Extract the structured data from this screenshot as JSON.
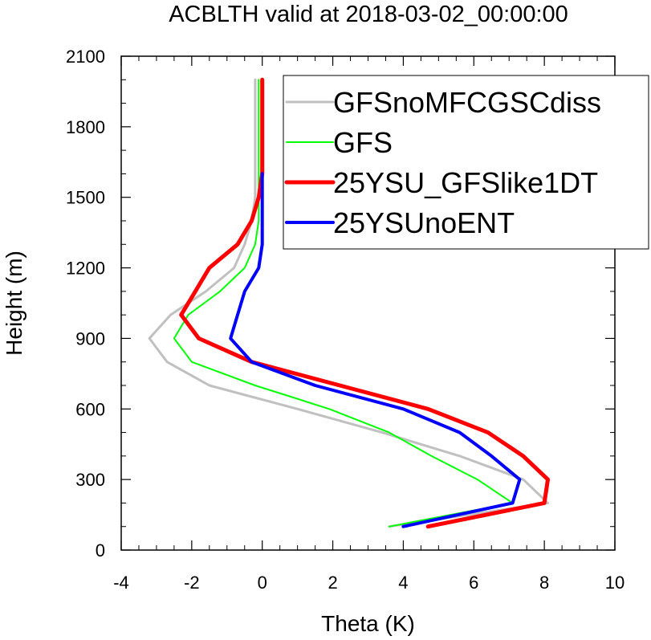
{
  "chart_data": {
    "type": "line",
    "title": "ACBLTH valid at 2018-03-02_00:00:00",
    "xlabel": "Theta (K)",
    "ylabel": "Height (m)",
    "xlim": [
      -4,
      10
    ],
    "ylim": [
      0,
      2100
    ],
    "xticks": [
      -4,
      -2,
      0,
      2,
      4,
      6,
      8,
      10
    ],
    "yticks": [
      0,
      300,
      600,
      900,
      1200,
      1500,
      1800,
      2100
    ],
    "grid": false,
    "legend_position": "top-right",
    "series": [
      {
        "name": "GFSnoMFCGSCdiss",
        "color": "#c0c0c0",
        "width": 3,
        "points": [
          [
            3.6,
            100
          ],
          [
            8.1,
            200
          ],
          [
            7.4,
            300
          ],
          [
            5.6,
            400
          ],
          [
            3.4,
            500
          ],
          [
            1.0,
            600
          ],
          [
            -1.5,
            700
          ],
          [
            -2.7,
            800
          ],
          [
            -3.2,
            900
          ],
          [
            -2.6,
            1000
          ],
          [
            -1.6,
            1100
          ],
          [
            -0.8,
            1200
          ],
          [
            -0.5,
            1300
          ],
          [
            -0.3,
            1400
          ],
          [
            -0.2,
            1500
          ],
          [
            -0.2,
            1600
          ],
          [
            -0.2,
            1700
          ],
          [
            -0.2,
            1800
          ],
          [
            -0.2,
            1900
          ],
          [
            -0.2,
            2000
          ]
        ]
      },
      {
        "name": "GFS",
        "color": "#00ff00",
        "width": 2,
        "points": [
          [
            3.6,
            100
          ],
          [
            7.1,
            200
          ],
          [
            6.1,
            300
          ],
          [
            4.8,
            400
          ],
          [
            3.6,
            500
          ],
          [
            1.9,
            600
          ],
          [
            -0.2,
            700
          ],
          [
            -2.0,
            800
          ],
          [
            -2.5,
            900
          ],
          [
            -2.1,
            1000
          ],
          [
            -1.2,
            1100
          ],
          [
            -0.5,
            1200
          ],
          [
            -0.2,
            1300
          ],
          [
            -0.1,
            1400
          ],
          [
            -0.1,
            1500
          ],
          [
            -0.1,
            1600
          ],
          [
            -0.1,
            1700
          ],
          [
            -0.1,
            1800
          ],
          [
            -0.1,
            1900
          ],
          [
            -0.1,
            2000
          ]
        ]
      },
      {
        "name": "25YSU_GFSlike1DT",
        "color": "#ff0000",
        "width": 5,
        "points": [
          [
            4.7,
            100
          ],
          [
            8.0,
            200
          ],
          [
            8.1,
            300
          ],
          [
            7.4,
            400
          ],
          [
            6.4,
            500
          ],
          [
            4.7,
            600
          ],
          [
            2.2,
            700
          ],
          [
            -0.3,
            800
          ],
          [
            -1.8,
            900
          ],
          [
            -2.3,
            1000
          ],
          [
            -1.9,
            1100
          ],
          [
            -1.5,
            1200
          ],
          [
            -0.7,
            1300
          ],
          [
            -0.3,
            1400
          ],
          [
            -0.1,
            1500
          ],
          [
            0.0,
            1600
          ],
          [
            0.0,
            1700
          ],
          [
            0.0,
            1800
          ],
          [
            0.0,
            1900
          ],
          [
            0.0,
            2000
          ]
        ]
      },
      {
        "name": "25YSUnoENT",
        "color": "#0000ff",
        "width": 4,
        "points": [
          [
            4.0,
            100
          ],
          [
            7.1,
            200
          ],
          [
            7.3,
            300
          ],
          [
            6.5,
            400
          ],
          [
            5.6,
            500
          ],
          [
            4.0,
            600
          ],
          [
            1.5,
            700
          ],
          [
            -0.3,
            800
          ],
          [
            -0.9,
            900
          ],
          [
            -0.7,
            1000
          ],
          [
            -0.5,
            1100
          ],
          [
            -0.1,
            1200
          ],
          [
            0.0,
            1300
          ],
          [
            0.0,
            1400
          ],
          [
            0.0,
            1500
          ],
          [
            0.0,
            1600
          ]
        ]
      }
    ]
  }
}
